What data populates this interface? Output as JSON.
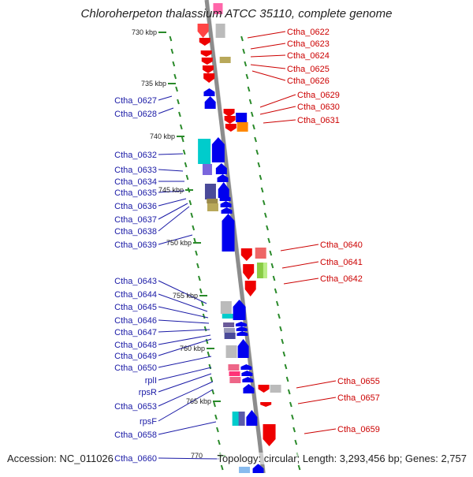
{
  "title": "Chloroherpeton thalassium ATCC 35110, complete genome",
  "footer": {
    "accession": "Accession: NC_011026",
    "summary": "Topology: circular; Length: 3,293,456 bp; Genes: 2,757"
  },
  "ruler_labels": [
    "730 kbp",
    "735 kbp",
    "740 kbp",
    "745 kbp",
    "750 kbp",
    "755 kbp",
    "760 kbp",
    "765 kbp",
    "770"
  ],
  "left_genes": [
    "Ctha_0627",
    "Ctha_0628",
    "Ctha_0632",
    "Ctha_0633",
    "Ctha_0634",
    "Ctha_0635",
    "Ctha_0636",
    "Ctha_0637",
    "Ctha_0638",
    "Ctha_0639",
    "Ctha_0643",
    "Ctha_0644",
    "Ctha_0645",
    "Ctha_0646",
    "Ctha_0647",
    "Ctha_0648",
    "Ctha_0649",
    "Ctha_0650",
    "rplI",
    "rpsR",
    "Ctha_0653",
    "rpsF",
    "Ctha_0658",
    "Ctha_0660"
  ],
  "right_genes": [
    "Ctha_0622",
    "Ctha_0623",
    "Ctha_0624",
    "Ctha_0625",
    "Ctha_0626",
    "Ctha_0629",
    "Ctha_0630",
    "Ctha_0631",
    "Ctha_0640",
    "Ctha_0641",
    "Ctha_0642",
    "Ctha_0655",
    "Ctha_0657",
    "Ctha_0659"
  ],
  "colors": {
    "forward_strand": "#0000ee",
    "reverse_strand": "#ee0000",
    "backbone": "#8c8c8c",
    "ruler_ticks": "#2a8a2a",
    "left_label": "#1a1aa6",
    "right_label": "#cc0000"
  }
}
